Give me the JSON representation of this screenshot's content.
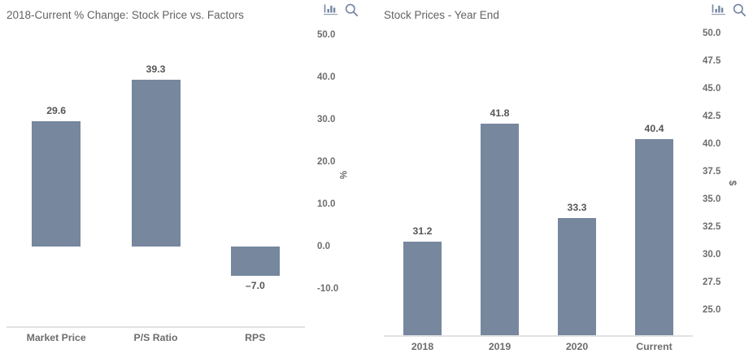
{
  "page": {
    "background": "#ffffff"
  },
  "toolbar": {
    "icons": [
      "bar-chart-icon",
      "magnifier-icon"
    ]
  },
  "chart_data": [
    {
      "type": "bar",
      "title": "2018-Current % Change: Stock Price vs. Factors",
      "categories": [
        "Market Price",
        "P/S Ratio",
        "RPS"
      ],
      "values": [
        29.6,
        39.3,
        -7.0
      ],
      "value_labels": [
        "29.6",
        "39.3",
        "–7.0"
      ],
      "ylabel": "%",
      "yticks": [
        50,
        40,
        30,
        20,
        10,
        0,
        -10
      ],
      "ytick_labels": [
        "50.0",
        "40.0",
        "30.0",
        "20.0",
        "10.0",
        "0.0",
        "-10.0"
      ],
      "ylim": [
        -19.2,
        52.4
      ],
      "baseline": 0,
      "grid": false,
      "legend": false,
      "tick_side": "right",
      "bar_color": "#76879E",
      "toolbar_icons": [
        "bar-chart-icon",
        "magnifier-icon"
      ]
    },
    {
      "type": "bar",
      "title": "Stock Prices - Year End",
      "categories": [
        "2018",
        "2019",
        "2020",
        "Current"
      ],
      "values": [
        31.2,
        41.8,
        33.3,
        40.4
      ],
      "value_labels": [
        "31.2",
        "41.8",
        "33.3",
        "40.4"
      ],
      "ylabel": "$",
      "yticks": [
        50,
        47.5,
        45,
        42.5,
        40,
        37.5,
        35,
        32.5,
        30,
        27.5,
        25
      ],
      "ytick_labels": [
        "50.0",
        "47.5",
        "45.0",
        "42.5",
        "40.0",
        "37.5",
        "35.0",
        "32.5",
        "30.0",
        "27.5",
        "25.0"
      ],
      "ylim": [
        22.57,
        50.8
      ],
      "baseline": null,
      "grid": false,
      "legend": false,
      "tick_side": "right",
      "bar_color": "#76879E",
      "toolbar_icons": [
        "bar-chart-icon",
        "magnifier-icon"
      ]
    }
  ]
}
